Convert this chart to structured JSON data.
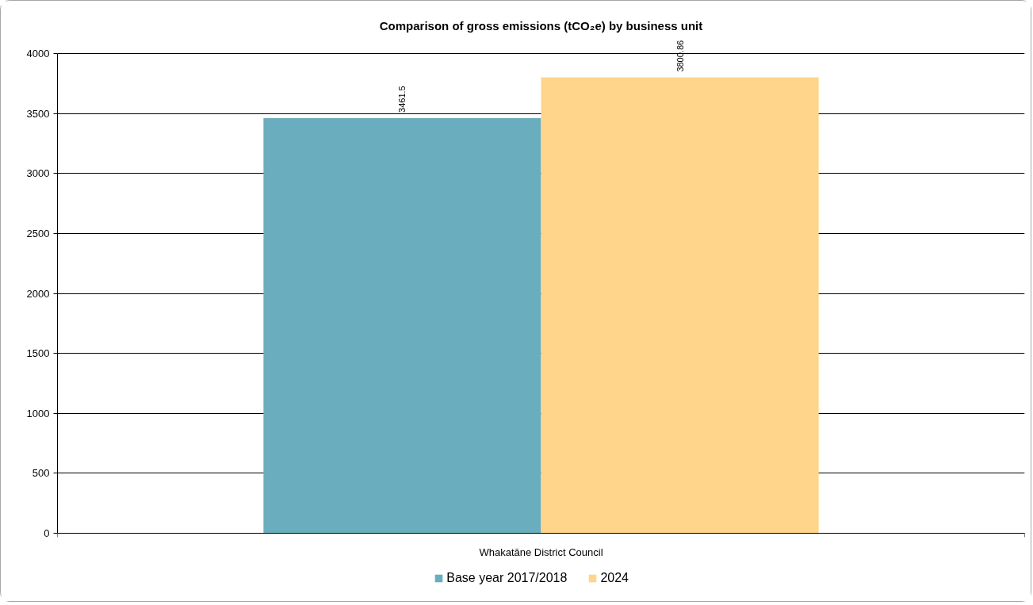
{
  "chart_data": {
    "type": "bar",
    "title": "Comparison of gross emissions (tCO₂e) by business unit",
    "categories": [
      "Whakatāne District Council"
    ],
    "series": [
      {
        "name": "Base year 2017/2018",
        "color": "#6aadbe",
        "values": [
          3461.5
        ]
      },
      {
        "name": "2024",
        "color": "#fed58b",
        "values": [
          3800.86
        ]
      }
    ],
    "ylim": [
      0,
      4000
    ],
    "yticks": [
      0,
      500,
      1000,
      1500,
      2000,
      2500,
      3000,
      3500,
      4000
    ],
    "grid": "y",
    "legend": "bottom",
    "data_labels": true
  }
}
